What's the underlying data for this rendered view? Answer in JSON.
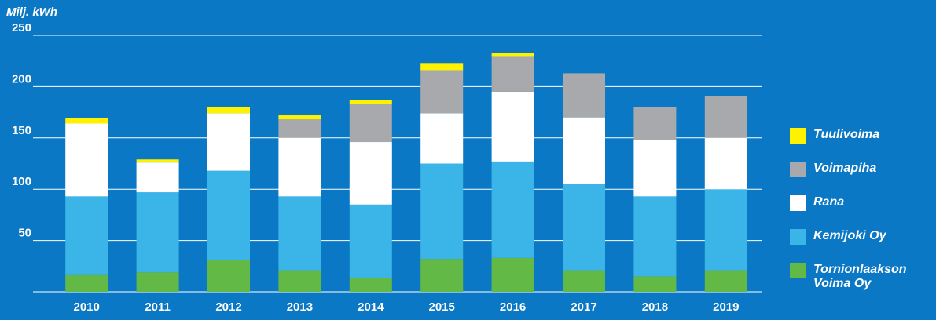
{
  "chart_data": {
    "type": "stacked_bar",
    "y_label": "Milj. kWh",
    "categories": [
      "2010",
      "2011",
      "2012",
      "2013",
      "2014",
      "2015",
      "2016",
      "2017",
      "2018",
      "2019"
    ],
    "series": [
      {
        "name": "Tornionlaakson Voima Oy",
        "color": "#62b946",
        "values": [
          17,
          19,
          31,
          21,
          13,
          32,
          33,
          21,
          15,
          21
        ]
      },
      {
        "name": "Kemijoki Oy",
        "color": "#3bb4e8",
        "values": [
          76,
          78,
          87,
          72,
          72,
          93,
          94,
          84,
          78,
          79
        ]
      },
      {
        "name": "Rana",
        "color": "#ffffff",
        "values": [
          71,
          29,
          56,
          57,
          61,
          49,
          68,
          65,
          55,
          50
        ]
      },
      {
        "name": "Voimapiha",
        "color": "#a7a9ac",
        "values": [
          0,
          0,
          0,
          18,
          37,
          42,
          34,
          43,
          32,
          41
        ]
      },
      {
        "name": "Tuulivoima",
        "color": "#fff200",
        "values": [
          5,
          3,
          6,
          4,
          4,
          7,
          4,
          0,
          0,
          0
        ]
      }
    ],
    "ylim": [
      0,
      250
    ],
    "yticks": [
      50,
      100,
      150,
      200,
      250
    ],
    "grid": true
  }
}
